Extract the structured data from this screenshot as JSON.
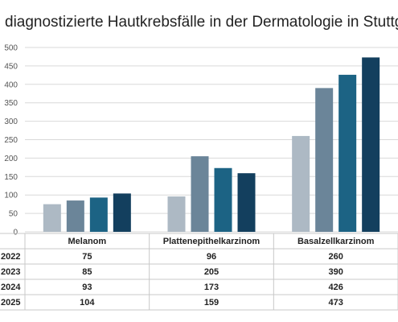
{
  "title": "diagnostizierte Hautkrebsfälle in der Dermatologie in Stuttgart",
  "colors": {
    "2022": "#adb9c4",
    "2023": "#6b8599",
    "2024": "#1c6384",
    "2025": "#133f5e",
    "grid": "#d9d9d9",
    "table_border": "#c8c8c8"
  },
  "chart_data": {
    "type": "bar",
    "title": "diagnostizierte Hautkrebsfälle in der Dermatologie in Stuttgart",
    "categories": [
      "Melanom",
      "Plattenepithelkarzinom",
      "Basalzellkarzinom"
    ],
    "series": [
      {
        "name": "2022",
        "values": [
          75,
          96,
          260
        ]
      },
      {
        "name": "2023",
        "values": [
          85,
          205,
          390
        ]
      },
      {
        "name": "2024",
        "values": [
          93,
          173,
          426
        ]
      },
      {
        "name": "2025",
        "values": [
          104,
          159,
          473
        ]
      }
    ],
    "ylim": [
      0,
      500
    ],
    "yticks": [
      "0",
      "50",
      "100",
      "150",
      "200",
      "250",
      "300",
      "350",
      "400",
      "450",
      "500"
    ],
    "xlabel": "",
    "ylabel": "",
    "grid": true,
    "legend": "data table below chart"
  }
}
